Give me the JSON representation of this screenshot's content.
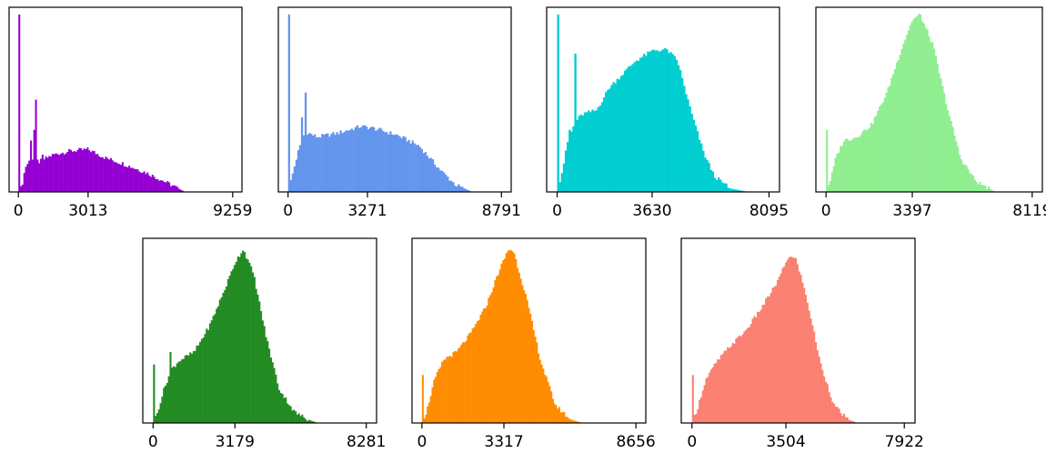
{
  "chart_data": [
    {
      "type": "bar",
      "title": "",
      "xlabel": "",
      "ylabel": "",
      "color": "#9400D3",
      "xlim": [
        -400,
        9659
      ],
      "ylim": [
        0,
        1.0
      ],
      "xticks": [
        0,
        3013,
        9259
      ],
      "xticklabels": [
        "0",
        "3013",
        "9259"
      ],
      "data_end": 7200,
      "spikes": [
        [
          0,
          1.0
        ],
        [
          550,
          0.29
        ],
        [
          650,
          0.35
        ],
        [
          720,
          0.52
        ],
        [
          1050,
          0.21
        ]
      ],
      "profile": [
        [
          0,
          0.0
        ],
        [
          150,
          0.03
        ],
        [
          300,
          0.14
        ],
        [
          550,
          0.19
        ],
        [
          900,
          0.17
        ],
        [
          1500,
          0.21
        ],
        [
          2200,
          0.23
        ],
        [
          3000,
          0.24
        ],
        [
          3800,
          0.19
        ],
        [
          4500,
          0.16
        ],
        [
          5500,
          0.11
        ],
        [
          6300,
          0.06
        ],
        [
          6900,
          0.02
        ],
        [
          7200,
          0.0
        ]
      ]
    },
    {
      "type": "bar",
      "title": "",
      "xlabel": "",
      "ylabel": "",
      "color": "#6495ED",
      "xlim": [
        -400,
        9191
      ],
      "ylim": [
        0,
        1.0
      ],
      "xticks": [
        0,
        3271,
        8791
      ],
      "xticklabels": [
        "0",
        "3271",
        "8791"
      ],
      "data_end": 7600,
      "spikes": [
        [
          0,
          1.0
        ],
        [
          600,
          0.42
        ],
        [
          750,
          0.56
        ]
      ],
      "profile": [
        [
          0,
          0.0
        ],
        [
          150,
          0.08
        ],
        [
          400,
          0.22
        ],
        [
          700,
          0.34
        ],
        [
          1200,
          0.31
        ],
        [
          2000,
          0.33
        ],
        [
          3000,
          0.37
        ],
        [
          3500,
          0.36
        ],
        [
          4500,
          0.32
        ],
        [
          5400,
          0.26
        ],
        [
          6300,
          0.12
        ],
        [
          6900,
          0.04
        ],
        [
          7600,
          0.0
        ]
      ]
    },
    {
      "type": "bar",
      "title": "",
      "xlabel": "",
      "ylabel": "",
      "color": "#00CED1",
      "xlim": [
        -400,
        8495
      ],
      "ylim": [
        0,
        1.0
      ],
      "xticks": [
        0,
        3630,
        8095
      ],
      "xticklabels": [
        "0",
        "3630",
        "8095"
      ],
      "data_end": 7300,
      "spikes": [
        [
          0,
          1.0
        ],
        [
          500,
          0.35
        ],
        [
          700,
          0.78
        ]
      ],
      "profile": [
        [
          0,
          0.0
        ],
        [
          200,
          0.12
        ],
        [
          400,
          0.28
        ],
        [
          700,
          0.4
        ],
        [
          1000,
          0.44
        ],
        [
          1500,
          0.46
        ],
        [
          2000,
          0.59
        ],
        [
          3000,
          0.74
        ],
        [
          3700,
          0.8
        ],
        [
          4200,
          0.8
        ],
        [
          4600,
          0.74
        ],
        [
          5100,
          0.46
        ],
        [
          5600,
          0.22
        ],
        [
          6000,
          0.09
        ],
        [
          6600,
          0.02
        ],
        [
          7300,
          0.0
        ]
      ]
    },
    {
      "type": "bar",
      "title": "",
      "xlabel": "",
      "ylabel": "",
      "color": "#90EE90",
      "xlim": [
        -400,
        8519
      ],
      "ylim": [
        0,
        1.0
      ],
      "xticks": [
        0,
        3397,
        8119
      ],
      "xticklabels": [
        "0",
        "3397",
        "8119"
      ],
      "data_end": 6700,
      "spikes": [
        [
          0,
          0.35
        ]
      ],
      "profile": [
        [
          0,
          0.0
        ],
        [
          200,
          0.08
        ],
        [
          400,
          0.2
        ],
        [
          700,
          0.29
        ],
        [
          1200,
          0.31
        ],
        [
          1800,
          0.38
        ],
        [
          2400,
          0.56
        ],
        [
          3000,
          0.82
        ],
        [
          3400,
          0.97
        ],
        [
          3700,
          1.0
        ],
        [
          4200,
          0.83
        ],
        [
          4800,
          0.46
        ],
        [
          5300,
          0.19
        ],
        [
          5900,
          0.06
        ],
        [
          6400,
          0.02
        ],
        [
          6700,
          0.0
        ]
      ]
    },
    {
      "type": "bar",
      "title": "",
      "xlabel": "",
      "ylabel": "",
      "color": "#228B22",
      "xlim": [
        -400,
        8681
      ],
      "ylim": [
        0,
        1.0
      ],
      "xticks": [
        0,
        3179,
        8281
      ],
      "xticklabels": [
        "0",
        "3179",
        "8281"
      ],
      "data_end": 6400,
      "spikes": [
        [
          0,
          0.33
        ],
        [
          700,
          0.4
        ]
      ],
      "profile": [
        [
          0,
          0.0
        ],
        [
          150,
          0.05
        ],
        [
          400,
          0.18
        ],
        [
          700,
          0.3
        ],
        [
          1000,
          0.35
        ],
        [
          1600,
          0.4
        ],
        [
          2200,
          0.55
        ],
        [
          2800,
          0.76
        ],
        [
          3200,
          0.91
        ],
        [
          3500,
          0.98
        ],
        [
          3900,
          0.84
        ],
        [
          4400,
          0.48
        ],
        [
          4900,
          0.19
        ],
        [
          5500,
          0.06
        ],
        [
          6000,
          0.02
        ],
        [
          6400,
          0.0
        ]
      ]
    },
    {
      "type": "bar",
      "title": "",
      "xlabel": "",
      "ylabel": "",
      "color": "#FF8C00",
      "xlim": [
        -400,
        9056
      ],
      "ylim": [
        0,
        1.0
      ],
      "xticks": [
        0,
        3317,
        8656
      ],
      "xticklabels": [
        "0",
        "3317",
        "8656"
      ],
      "data_end": 6500,
      "spikes": [
        [
          0,
          0.27
        ]
      ],
      "profile": [
        [
          0,
          0.0
        ],
        [
          200,
          0.07
        ],
        [
          500,
          0.24
        ],
        [
          900,
          0.36
        ],
        [
          1400,
          0.4
        ],
        [
          2000,
          0.51
        ],
        [
          2600,
          0.66
        ],
        [
          3100,
          0.85
        ],
        [
          3500,
          0.98
        ],
        [
          3700,
          0.97
        ],
        [
          4200,
          0.72
        ],
        [
          4800,
          0.35
        ],
        [
          5400,
          0.1
        ],
        [
          6000,
          0.02
        ],
        [
          6500,
          0.0
        ]
      ]
    },
    {
      "type": "bar",
      "title": "",
      "xlabel": "",
      "ylabel": "",
      "color": "#FA8072",
      "xlim": [
        -400,
        8322
      ],
      "ylim": [
        0,
        1.0
      ],
      "xticks": [
        0,
        3504,
        7922
      ],
      "xticklabels": [
        "0",
        "3504",
        "7922"
      ],
      "data_end": 6200,
      "spikes": [
        [
          0,
          0.27
        ]
      ],
      "profile": [
        [
          0,
          0.0
        ],
        [
          200,
          0.08
        ],
        [
          500,
          0.24
        ],
        [
          900,
          0.34
        ],
        [
          1400,
          0.43
        ],
        [
          2000,
          0.52
        ],
        [
          2600,
          0.65
        ],
        [
          3200,
          0.8
        ],
        [
          3600,
          0.94
        ],
        [
          3900,
          0.92
        ],
        [
          4300,
          0.69
        ],
        [
          4800,
          0.33
        ],
        [
          5300,
          0.1
        ],
        [
          5800,
          0.02
        ],
        [
          6200,
          0.0
        ]
      ]
    }
  ]
}
